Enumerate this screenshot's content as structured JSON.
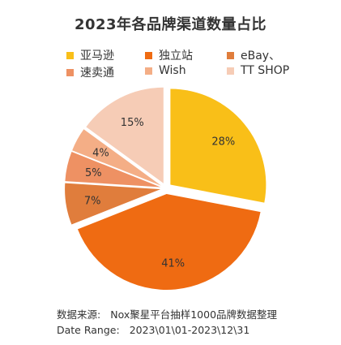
{
  "chart_data": {
    "type": "pie",
    "title": "2023年各品牌渠道数量占比",
    "categories": [
      "亚马逊",
      "独立站",
      "eBay、",
      "速卖通",
      "Wish",
      "TT SHOP"
    ],
    "values": [
      28,
      41,
      7,
      5,
      4,
      15
    ],
    "value_labels": [
      "28%",
      "41%",
      "7%",
      "5%",
      "4%",
      "15%"
    ],
    "colors": [
      "#F9BF18",
      "#EF6B12",
      "#E07D3C",
      "#EE9163",
      "#F4AE86",
      "#F6CCB6"
    ],
    "legend_position": "top",
    "exploded": true
  },
  "footer": {
    "source_label": "数据来源:",
    "source_value": "Nox聚星平台抽样1000品牌数据整理",
    "date_label": "Date Range:",
    "date_value": "2023\\01\\01-2023\\12\\31"
  }
}
